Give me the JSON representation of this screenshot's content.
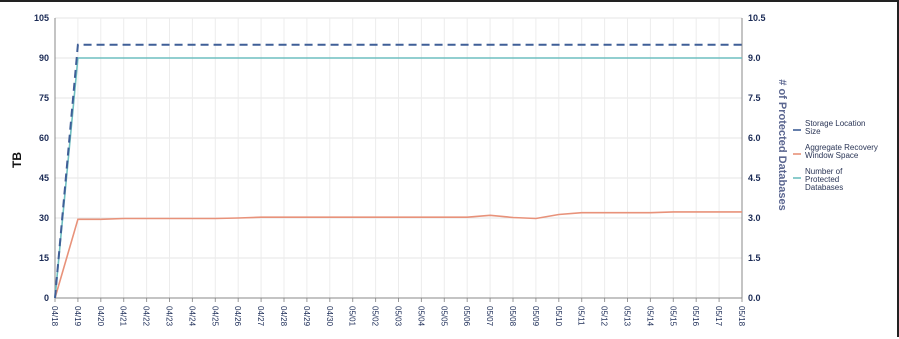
{
  "chart_data": {
    "type": "line",
    "ylabel": "TB",
    "y2label": "# of Protected Databases",
    "ylim": [
      0,
      105
    ],
    "y2lim": [
      0,
      10.5
    ],
    "yticks": [
      "0",
      "15",
      "30",
      "45",
      "60",
      "75",
      "90",
      "105"
    ],
    "y2ticks": [
      "0.0",
      "1.5",
      "3.0",
      "4.5",
      "6.0",
      "7.5",
      "9.0",
      "10.5"
    ],
    "categories": [
      "04/18",
      "04/19",
      "04/20",
      "04/21",
      "04/22",
      "04/23",
      "04/24",
      "04/25",
      "04/26",
      "04/27",
      "04/28",
      "04/29",
      "04/30",
      "05/01",
      "05/02",
      "05/03",
      "05/04",
      "05/05",
      "05/06",
      "05/07",
      "05/08",
      "05/09",
      "05/10",
      "05/11",
      "05/12",
      "05/13",
      "05/14",
      "05/15",
      "05/16",
      "05/17",
      "05/18"
    ],
    "legend_position": "right",
    "grid": true,
    "series": [
      {
        "name": "Storage Location Size",
        "color": "#3f5f97",
        "style": "dashed",
        "axis": "left",
        "values": [
          0,
          95,
          95,
          95,
          95,
          95,
          95,
          95,
          95,
          95,
          95,
          95,
          95,
          95,
          95,
          95,
          95,
          95,
          95,
          95,
          95,
          95,
          95,
          95,
          95,
          95,
          95,
          95,
          95,
          95,
          95
        ]
      },
      {
        "name": "Aggregate Recovery Window Space",
        "color": "#e8927a",
        "style": "solid",
        "axis": "left",
        "values": [
          0,
          29.5,
          29.5,
          29.8,
          29.8,
          29.8,
          29.8,
          29.8,
          30.0,
          30.3,
          30.3,
          30.3,
          30.3,
          30.3,
          30.3,
          30.3,
          30.3,
          30.3,
          30.3,
          31.0,
          30.2,
          29.8,
          31.3,
          32.0,
          32.0,
          32.0,
          32.0,
          32.3,
          32.3,
          32.3,
          32.3
        ]
      },
      {
        "name": "Number of Protected Databases",
        "color": "#6ebfc0",
        "style": "solid",
        "axis": "right",
        "values": [
          0,
          9,
          9,
          9,
          9,
          9,
          9,
          9,
          9,
          9,
          9,
          9,
          9,
          9,
          9,
          9,
          9,
          9,
          9,
          9,
          9,
          9,
          9,
          9,
          9,
          9,
          9,
          9,
          9,
          9,
          9
        ]
      }
    ]
  }
}
